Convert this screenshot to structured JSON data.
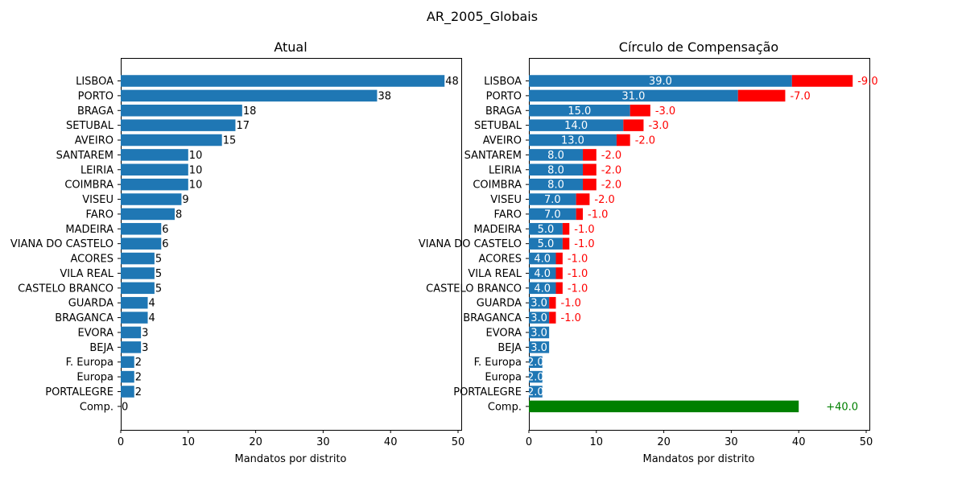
{
  "figure_title": "AR_2005_Globais",
  "colors": {
    "bar": "#1f77b4",
    "loss": "#ff0000",
    "gain": "#008000"
  },
  "chart_data": [
    {
      "type": "bar",
      "orientation": "horizontal",
      "title": "Atual",
      "xlabel": "Mandatos por distrito",
      "xlim": [
        0,
        50
      ],
      "xticks": [
        0,
        10,
        20,
        30,
        40,
        50
      ],
      "categories": [
        "LISBOA",
        "PORTO",
        "BRAGA",
        "SETUBAL",
        "AVEIRO",
        "SANTAREM",
        "LEIRIA",
        "COIMBRA",
        "VISEU",
        "FARO",
        "MADEIRA",
        "VIANA DO CASTELO",
        "ACORES",
        "VILA REAL",
        "CASTELO BRANCO",
        "GUARDA",
        "BRAGANCA",
        "EVORA",
        "BEJA",
        "F. Europa",
        "Europa",
        "PORTALEGRE",
        "Comp."
      ],
      "values": [
        48,
        38,
        18,
        17,
        15,
        10,
        10,
        10,
        9,
        8,
        6,
        6,
        5,
        5,
        5,
        4,
        4,
        3,
        3,
        2,
        2,
        2,
        0
      ],
      "data_labels": [
        "48",
        "38",
        "18",
        "17",
        "15",
        "10",
        "10",
        "10",
        "9",
        "8",
        "6",
        "6",
        "5",
        "5",
        "5",
        "4",
        "4",
        "3",
        "3",
        "2",
        "2",
        "2",
        "0"
      ]
    },
    {
      "type": "bar",
      "orientation": "horizontal",
      "stacked": true,
      "title": "Círculo de Compensação",
      "xlabel": "Mandatos por distrito",
      "xlim": [
        0,
        50
      ],
      "xticks": [
        0,
        10,
        20,
        30,
        40,
        50
      ],
      "categories": [
        "LISBOA",
        "PORTO",
        "BRAGA",
        "SETUBAL",
        "AVEIRO",
        "SANTAREM",
        "LEIRIA",
        "COIMBRA",
        "VISEU",
        "FARO",
        "MADEIRA",
        "VIANA DO CASTELO",
        "ACORES",
        "VILA REAL",
        "CASTELO BRANCO",
        "GUARDA",
        "BRAGANCA",
        "EVORA",
        "BEJA",
        "F. Europa",
        "Europa",
        "PORTALEGRE",
        "Comp."
      ],
      "series": [
        {
          "values": [
            39,
            31,
            15,
            14,
            13,
            8,
            8,
            8,
            7,
            7,
            5,
            5,
            4,
            4,
            4,
            3,
            3,
            3,
            3,
            2,
            2,
            2,
            0
          ],
          "labels": [
            "39.0",
            "31.0",
            "15.0",
            "14.0",
            "13.0",
            "8.0",
            "8.0",
            "8.0",
            "7.0",
            "7.0",
            "5.0",
            "5.0",
            "4.0",
            "4.0",
            "4.0",
            "3.0",
            "3.0",
            "3.0",
            "3.0",
            "2.0",
            "2.0",
            "2.0",
            ""
          ]
        },
        {
          "values": [
            9,
            7,
            3,
            3,
            2,
            2,
            2,
            2,
            2,
            1,
            1,
            1,
            1,
            1,
            1,
            1,
            1,
            0,
            0,
            0,
            0,
            0,
            0
          ],
          "labels": [
            "-9.0",
            "-7.0",
            "-3.0",
            "-3.0",
            "-2.0",
            "-2.0",
            "-2.0",
            "-2.0",
            "-2.0",
            "-1.0",
            "-1.0",
            "-1.0",
            "-1.0",
            "-1.0",
            "-1.0",
            "-1.0",
            "-1.0",
            "",
            "",
            "",
            "",
            "",
            ""
          ]
        },
        {
          "values": [
            0,
            0,
            0,
            0,
            0,
            0,
            0,
            0,
            0,
            0,
            0,
            0,
            0,
            0,
            0,
            0,
            0,
            0,
            0,
            0,
            0,
            0,
            40
          ],
          "labels": [
            "",
            "",
            "",
            "",
            "",
            "",
            "",
            "",
            "",
            "",
            "",
            "",
            "",
            "",
            "",
            "",
            "",
            "",
            "",
            "",
            "",
            "",
            "+40.0"
          ]
        }
      ]
    }
  ]
}
